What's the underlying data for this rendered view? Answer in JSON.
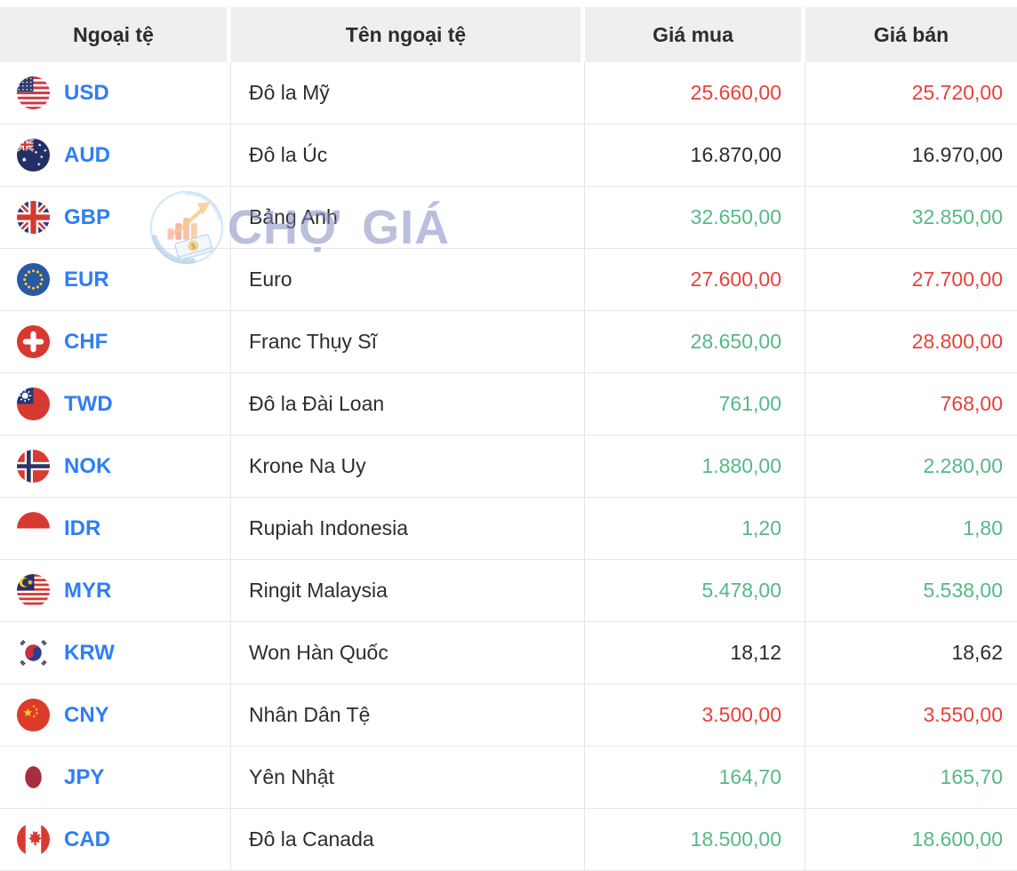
{
  "header": {
    "col_currency": "Ngoại tệ",
    "col_name": "Tên ngoại tệ",
    "col_buy": "Giá mua",
    "col_sell": "Giá bán"
  },
  "watermark": {
    "word1": "CHỢ",
    "word2": "GIÁ"
  },
  "colors": {
    "price_up_green": "#55b985",
    "price_down_red": "#e8413a",
    "price_neutral_black": "#2d2d2d",
    "currency_code_blue": "#2e7ef7",
    "header_background": "#efefef"
  },
  "rows": [
    {
      "code": "USD",
      "flag": "us-flag-icon",
      "name": "Đô la Mỹ",
      "buy": "25.660,00",
      "sell": "25.720,00",
      "buy_color": "red",
      "sell_color": "red"
    },
    {
      "code": "AUD",
      "flag": "au-flag-icon",
      "name": "Đô la Úc",
      "buy": "16.870,00",
      "sell": "16.970,00",
      "buy_color": "black",
      "sell_color": "black"
    },
    {
      "code": "GBP",
      "flag": "gb-flag-icon",
      "name": "Bảng Anh",
      "buy": "32.650,00",
      "sell": "32.850,00",
      "buy_color": "green",
      "sell_color": "green"
    },
    {
      "code": "EUR",
      "flag": "eu-flag-icon",
      "name": "Euro",
      "buy": "27.600,00",
      "sell": "27.700,00",
      "buy_color": "red",
      "sell_color": "red"
    },
    {
      "code": "CHF",
      "flag": "ch-flag-icon",
      "name": "Franc Thụy Sĩ",
      "buy": "28.650,00",
      "sell": "28.800,00",
      "buy_color": "green",
      "sell_color": "red"
    },
    {
      "code": "TWD",
      "flag": "tw-flag-icon",
      "name": "Đô la Đài Loan",
      "buy": "761,00",
      "sell": "768,00",
      "buy_color": "green",
      "sell_color": "red"
    },
    {
      "code": "NOK",
      "flag": "no-flag-icon",
      "name": "Krone Na Uy",
      "buy": "1.880,00",
      "sell": "2.280,00",
      "buy_color": "green",
      "sell_color": "green"
    },
    {
      "code": "IDR",
      "flag": "id-flag-icon",
      "name": "Rupiah Indonesia",
      "buy": "1,20",
      "sell": "1,80",
      "buy_color": "green",
      "sell_color": "green"
    },
    {
      "code": "MYR",
      "flag": "my-flag-icon",
      "name": "Ringit Malaysia",
      "buy": "5.478,00",
      "sell": "5.538,00",
      "buy_color": "green",
      "sell_color": "green"
    },
    {
      "code": "KRW",
      "flag": "kr-flag-icon",
      "name": "Won Hàn Quốc",
      "buy": "18,12",
      "sell": "18,62",
      "buy_color": "black",
      "sell_color": "black"
    },
    {
      "code": "CNY",
      "flag": "cn-flag-icon",
      "name": "Nhân Dân Tệ",
      "buy": "3.500,00",
      "sell": "3.550,00",
      "buy_color": "red",
      "sell_color": "red"
    },
    {
      "code": "JPY",
      "flag": "jp-flag-icon",
      "name": "Yên Nhật",
      "buy": "164,70",
      "sell": "165,70",
      "buy_color": "green",
      "sell_color": "green"
    },
    {
      "code": "CAD",
      "flag": "ca-flag-icon",
      "name": "Đô la Canada",
      "buy": "18.500,00",
      "sell": "18.600,00",
      "buy_color": "green",
      "sell_color": "green"
    }
  ]
}
